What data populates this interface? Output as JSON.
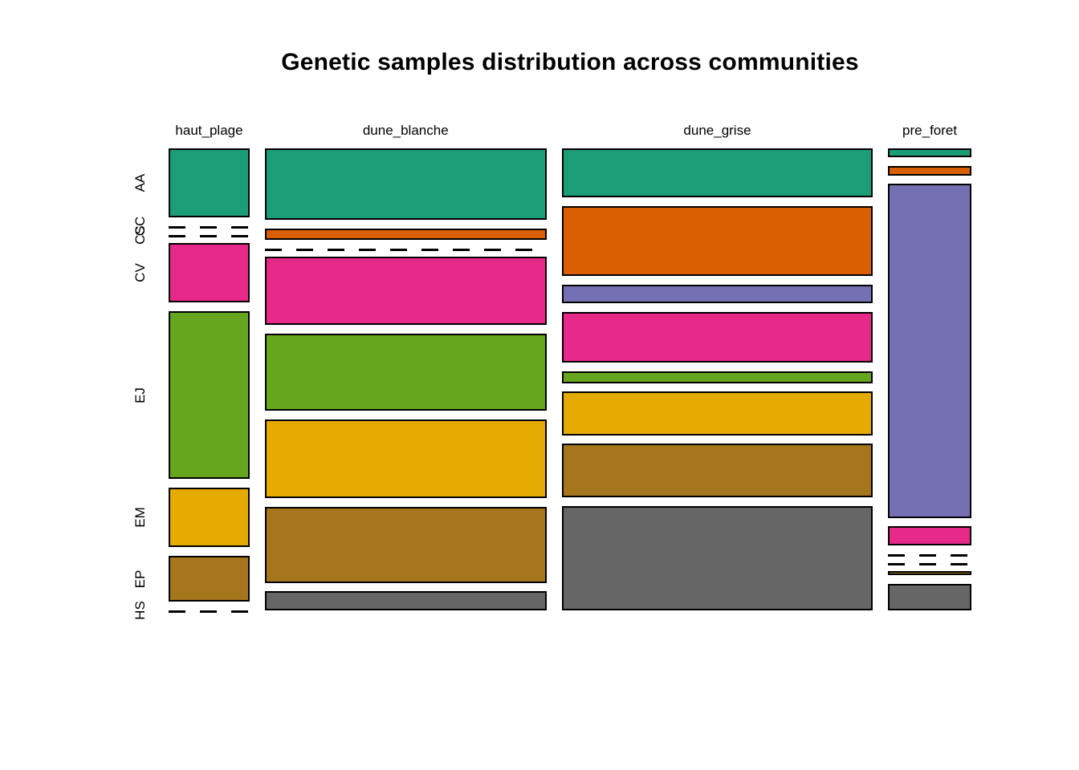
{
  "title": "Genetic samples distribution across communities",
  "chart_data": {
    "type": "mosaic",
    "title": "Genetic samples distribution across communities",
    "xlabel": "",
    "ylabel": "",
    "legend": "none",
    "grid": false,
    "background_color": "#ffffff",
    "border_color": "#000000",
    "x_categories": [
      "haut_plage",
      "dune_blanche",
      "dune_grise",
      "pre_foret"
    ],
    "y_categories": [
      "AA",
      "CC",
      "CS",
      "CV",
      "EJ",
      "EM",
      "EP",
      "HS"
    ],
    "rows": [
      {
        "label": "AA",
        "color": "#1B9E77"
      },
      {
        "label": "CC",
        "color": "#D95F02"
      },
      {
        "label": "CS",
        "color": "#7570B3"
      },
      {
        "label": "CV",
        "color": "#E7298A"
      },
      {
        "label": "EJ",
        "color": "#66A61E"
      },
      {
        "label": "EM",
        "color": "#E6AB02"
      },
      {
        "label": "EP",
        "color": "#A6761D"
      },
      {
        "label": "HS",
        "color": "#666666"
      }
    ],
    "columns": [
      {
        "label": "haut_plage",
        "width_fraction": 0.107,
        "proportions": [
          0.172,
          0.0,
          0.0,
          0.148,
          0.417,
          0.148,
          0.115,
          0.0
        ]
      },
      {
        "label": "dune_blanche",
        "width_fraction": 0.372,
        "proportions": [
          0.178,
          0.028,
          0.0,
          0.17,
          0.192,
          0.196,
          0.189,
          0.047
        ]
      },
      {
        "label": "dune_grise",
        "width_fraction": 0.411,
        "proportions": [
          0.122,
          0.174,
          0.047,
          0.126,
          0.03,
          0.108,
          0.133,
          0.26
        ]
      },
      {
        "label": "pre_foret",
        "width_fraction": 0.11,
        "proportions": [
          0.022,
          0.024,
          0.83,
          0.048,
          0.0,
          0.0,
          0.01,
          0.066
        ]
      }
    ]
  }
}
